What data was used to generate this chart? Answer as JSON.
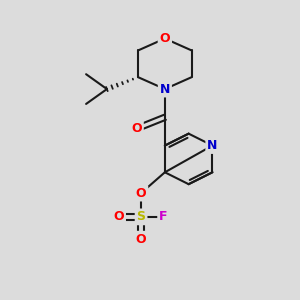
{
  "background_color": "#dcdcdc",
  "bond_color": "#1a1a1a",
  "bond_width": 1.5,
  "atom_colors": {
    "O": "#ff0000",
    "N": "#0000cc",
    "S": "#b8b800",
    "F": "#cc00cc",
    "C": "#1a1a1a"
  },
  "font_size_atom": 9,
  "fig_width": 3.0,
  "fig_height": 3.0,
  "dpi": 100
}
